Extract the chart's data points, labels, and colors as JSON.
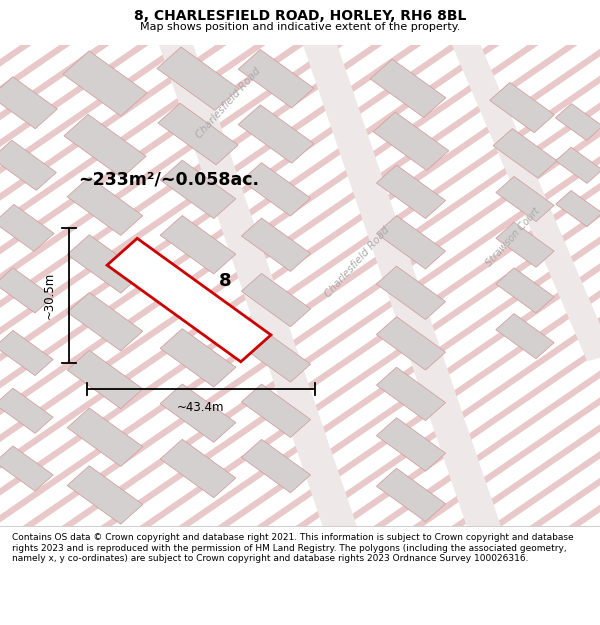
{
  "title": "8, CHARLESFIELD ROAD, HORLEY, RH6 8BL",
  "subtitle": "Map shows position and indicative extent of the property.",
  "footer": "Contains OS data © Crown copyright and database right 2021. This information is subject to Crown copyright and database rights 2023 and is reproduced with the permission of HM Land Registry. The polygons (including the associated geometry, namely x, y co-ordinates) are subject to Crown copyright and database rights 2023 Ordnance Survey 100026316.",
  "area_label": "~233m²/~0.058ac.",
  "width_label": "~43.4m",
  "height_label": "~30.5m",
  "plot_number": "8",
  "map_bg": "#ede8e8",
  "road_stripe_color": "#e8c8c8",
  "road_center_color": "#f5f0f0",
  "building_color": "#d4d0d0",
  "building_outline": "#d4a0a0",
  "highlight_color": "#cc0000",
  "street_label_color": "#aaaaaa",
  "title_fontsize": 10,
  "subtitle_fontsize": 8,
  "footer_fontsize": 6.5
}
